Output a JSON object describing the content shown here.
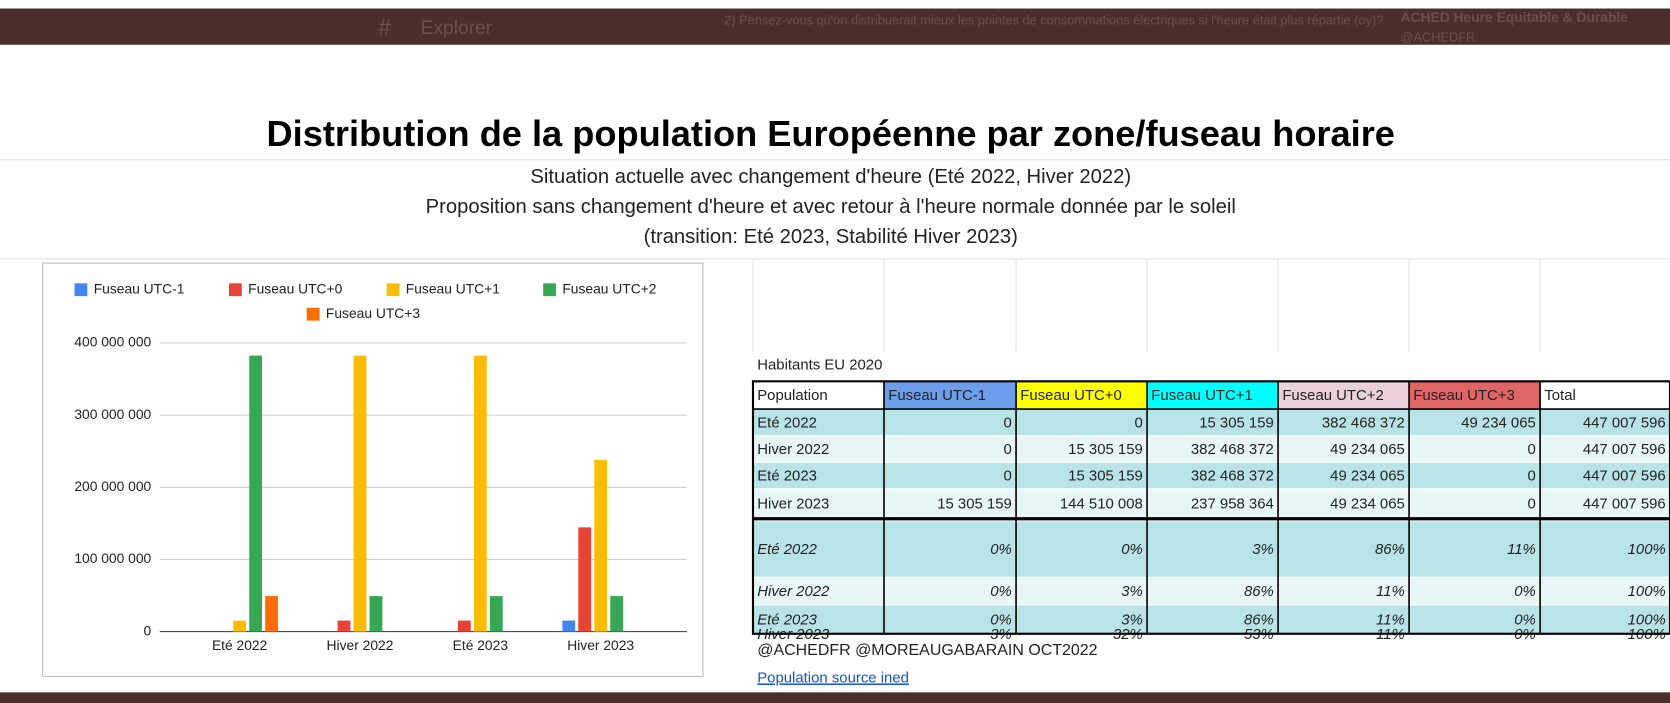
{
  "topbar": {
    "explorer": "Explorer",
    "question": "2) Pensez-vous qu'on distribuerait mieux les pointes de consommations électriques si l'heure était plus répartie (oy)?",
    "account": "ACHED Heure Equitable & Durable",
    "handle": "@ACHEDFR"
  },
  "title": "Distribution de la population Européenne par zone/fuseau horaire",
  "subtitles": [
    "Situation actuelle avec changement d'heure  (Eté 2022, Hiver 2022)",
    "Proposition sans changement d'heure et avec retour à l'heure normale donnée par le soleil",
    "(transition: Eté 2023, Stabilité Hiver 2023)"
  ],
  "chart_data": {
    "type": "bar",
    "categories": [
      "Eté 2022",
      "Hiver 2022",
      "Eté 2023",
      "Hiver 2023"
    ],
    "series": [
      {
        "name": "Fuseau UTC-1",
        "color": "#4285f4",
        "values": [
          0,
          0,
          0,
          15305159
        ]
      },
      {
        "name": "Fuseau UTC+0",
        "color": "#ea4335",
        "values": [
          0,
          15305159,
          15305159,
          144510008
        ]
      },
      {
        "name": "Fuseau UTC+1",
        "color": "#fbbc04",
        "values": [
          15305159,
          382468372,
          382468372,
          237958364
        ]
      },
      {
        "name": "Fuseau UTC+2",
        "color": "#34a853",
        "values": [
          382468372,
          49234065,
          49234065,
          49234065
        ]
      },
      {
        "name": "Fuseau UTC+3",
        "color": "#ff6d01",
        "values": [
          49234065,
          0,
          0,
          0
        ]
      }
    ],
    "ylim": [
      0,
      400000000
    ],
    "yticks": [
      0,
      {
        "value": 100000000,
        "label": "100 000 000"
      },
      {
        "value": 200000000,
        "label": "200 000 000"
      },
      {
        "value": 300000000,
        "label": "300 000 000"
      },
      {
        "value": 400000000,
        "label": "400 000 000"
      }
    ],
    "grid": true,
    "legend": "top"
  },
  "table": {
    "caption": "Habitants EU 2020",
    "header": [
      "Population",
      "Fuseau UTC-1",
      "Fuseau UTC+0",
      "Fuseau UTC+1",
      "Fuseau UTC+2",
      "Fuseau UTC+3",
      "Total"
    ],
    "header_colors": [
      "#ffffff",
      "#6d9eeb",
      "#ffff00",
      "#00ffff",
      "#ead1dc",
      "#e06666",
      "#ffffff"
    ],
    "rows": [
      [
        "Eté 2022",
        "0",
        "0",
        "15 305 159",
        "382 468 372",
        "49 234 065",
        "447 007 596"
      ],
      [
        "Hiver 2022",
        "0",
        "15 305 159",
        "382 468 372",
        "49 234 065",
        "0",
        "447 007 596"
      ],
      [
        "Eté 2023",
        "0",
        "15 305 159",
        "382 468 372",
        "49 234 065",
        "0",
        "447 007 596"
      ],
      [
        "Hiver 2023",
        "15 305 159",
        "144 510 008",
        "237 958 364",
        "49 234 065",
        "0",
        "447 007 596"
      ],
      [
        "Eté 2022",
        "0%",
        "0%",
        "3%",
        "86%",
        "11%",
        "100%"
      ],
      [
        "Hiver 2022",
        "0%",
        "3%",
        "86%",
        "11%",
        "0%",
        "100%"
      ],
      [
        "Eté 2023",
        "0%",
        "3%",
        "86%",
        "11%",
        "0%",
        "100%"
      ],
      [
        "Hiver 2023",
        "3%",
        "32%",
        "53%",
        "11%",
        "0%",
        "100%"
      ]
    ]
  },
  "footer": {
    "credit": "@ACHEDFR @MOREAUGABARAIN OCT2022",
    "link": "Population source ined"
  }
}
